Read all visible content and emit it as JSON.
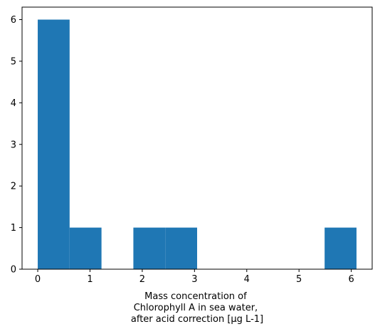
{
  "chart_data": {
    "type": "histogram",
    "title": "",
    "xlabel_lines": [
      "Mass concentration of",
      "Chlorophyll A in sea water,",
      "after acid correction [µg L-1]"
    ],
    "ylabel": "",
    "bin_edges": [
      0.0,
      0.61,
      1.22,
      1.83,
      2.44,
      3.05,
      3.66,
      4.27,
      4.88,
      5.49,
      6.1
    ],
    "counts": [
      6,
      1,
      0,
      1,
      1,
      0,
      0,
      0,
      0,
      1
    ],
    "xlim": [
      -0.3,
      6.4
    ],
    "ylim": [
      0,
      6.3
    ],
    "xticks": [
      0,
      1,
      2,
      3,
      4,
      5,
      6
    ],
    "yticks": [
      0,
      1,
      2,
      3,
      4,
      5,
      6
    ],
    "grid": false,
    "bar_color": "#1f77b4"
  }
}
